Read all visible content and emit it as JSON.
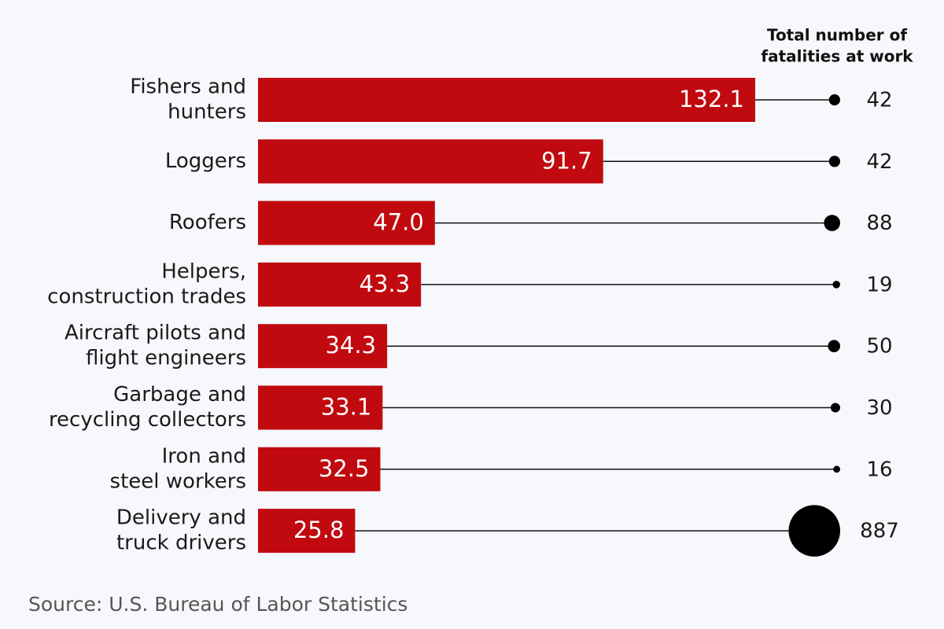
{
  "chart_data": {
    "type": "bar",
    "categories": [
      [
        "Fishers and",
        "hunters"
      ],
      [
        "Loggers"
      ],
      [
        "Roofers"
      ],
      [
        "Helpers,",
        "construction trades"
      ],
      [
        "Aircraft pilots and",
        "flight engineers"
      ],
      [
        "Garbage and",
        "recycling collectors"
      ],
      [
        "Iron and",
        "steel workers"
      ],
      [
        "Delivery and",
        "truck drivers"
      ]
    ],
    "values": [
      132.1,
      91.7,
      47.0,
      43.3,
      34.3,
      33.1,
      32.5,
      25.8
    ],
    "value_labels": [
      "132.1",
      "91.7",
      "47.0",
      "43.3",
      "34.3",
      "33.1",
      "32.5",
      "25.8"
    ],
    "color": "#c00a0f",
    "bubbles": {
      "title": [
        "Total number of",
        "fatalities at work"
      ],
      "values": [
        42,
        42,
        88,
        19,
        50,
        30,
        16,
        887
      ],
      "color": "#000000"
    },
    "source": "Source: U.S. Bureau of Labor Statistics"
  }
}
